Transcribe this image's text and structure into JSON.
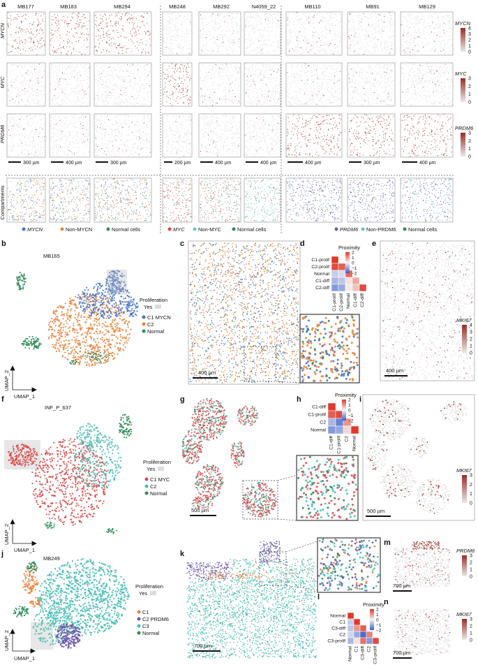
{
  "panel_labels": {
    "a": "a",
    "b": "b",
    "c": "c",
    "d": "d",
    "e": "e",
    "f": "f",
    "g": "g",
    "h": "h",
    "i": "i",
    "j": "j",
    "k": "k",
    "l": "l",
    "m": "m",
    "n": "n"
  },
  "colors": {
    "mycn": "#4472c4",
    "nonmycn": "#e8823a",
    "normal": "#2e8b57",
    "myc": "#d94a4a",
    "nonmyc": "#66c6c0",
    "prdm6": "#6f5aa8",
    "nonprdm6": "#66c6c0",
    "c3": "#49bcb4",
    "expr_low": "#d6d6d6",
    "expr_high": "#9b2d24"
  },
  "panel_a": {
    "samples": [
      "MB177",
      "MB183",
      "MB294",
      "MB248",
      "MB292",
      "N4059_22",
      "MB110",
      "MB91",
      "MB129"
    ],
    "row_labels": [
      "MYCN",
      "MYC",
      "PRDM6",
      "Compartments"
    ],
    "scalebars": [
      "300 µm",
      "400 µm",
      "300 µm",
      "200 µm",
      "400 µm",
      "400 µm",
      "400 µm",
      "300 µm",
      "400 µm"
    ],
    "colorbars": [
      {
        "gene": "MYCN",
        "ticks": [
          "4",
          "3",
          "2",
          "1",
          "0"
        ]
      },
      {
        "gene": "MYC",
        "ticks": [
          "3",
          "2",
          "1",
          "0"
        ]
      },
      {
        "gene": "PRDM6",
        "ticks": [
          "3",
          "2",
          "1",
          "0"
        ]
      }
    ],
    "legends": [
      [
        "MYCN",
        "Non-MYCN",
        "Normal cells"
      ],
      [
        "MYC",
        "Non-MYC",
        "Normal cells"
      ],
      [
        "PRDM6",
        "Non-PRDM6",
        "Normal cells"
      ]
    ]
  },
  "panel_b": {
    "title": "MB165",
    "legend_title": "Proliferation",
    "yes": "Yes",
    "legend": [
      "C1 MYCN",
      "C2",
      "Normal"
    ],
    "xaxis": "UMAP_1",
    "yaxis": "UMAP_2"
  },
  "panel_c": {
    "scalebar": "400 µm"
  },
  "panel_d": {
    "title": "Proximity",
    "labels": [
      "C1-prolif",
      "C2-prolif",
      "Normal",
      "C1-diff",
      "C2-diff"
    ],
    "ticks": [
      "2",
      "1",
      "0",
      "−1",
      "−2"
    ]
  },
  "panel_e": {
    "gene": "MKI67",
    "ticks": [
      "4",
      "3",
      "2",
      "1",
      "0"
    ],
    "scalebar": "400 µm"
  },
  "panel_f": {
    "title": "INF_P_637",
    "legend_title": "Proliferation",
    "yes": "Yes",
    "legend": [
      "C1 MYC",
      "C2",
      "Normal"
    ],
    "xaxis": "UMAP_1",
    "yaxis": "UMAP_2"
  },
  "panel_g": {
    "scalebar": "500 µm"
  },
  "panel_h": {
    "title": "Proximity",
    "labels": [
      "C1-diff",
      "C1-prolif",
      "C2",
      "Normal"
    ],
    "ticks": [
      "2",
      "1",
      "0",
      "−1",
      "−2"
    ]
  },
  "panel_i": {
    "gene": "MKI67",
    "ticks": [
      "3",
      "2",
      "1",
      "0"
    ],
    "scalebar": "500 µm"
  },
  "panel_j": {
    "title": "MB249",
    "legend_title": "Proliferation",
    "yes": "Yes",
    "legend": [
      "C1",
      "C2 PRDM6",
      "C3",
      "Normal"
    ],
    "xaxis": "UMAP_1",
    "yaxis": "UMAP_2"
  },
  "panel_k": {
    "scalebar": "700 µm"
  },
  "panel_l": {
    "title": "Proximity",
    "labels": [
      "Normal",
      "C1",
      "C3-diff",
      "C2",
      "C3-prolif"
    ],
    "ticks": [
      "2",
      "1",
      "0",
      "−1",
      "−2"
    ]
  },
  "panel_m": {
    "gene": "PRDM6",
    "ticks": [
      "3",
      "2",
      "1",
      "0"
    ],
    "scalebar": "700 µm"
  },
  "panel_n": {
    "gene": "MKI67",
    "ticks": [
      "3",
      "2",
      "1",
      "0"
    ],
    "scalebar": "700 µm"
  }
}
